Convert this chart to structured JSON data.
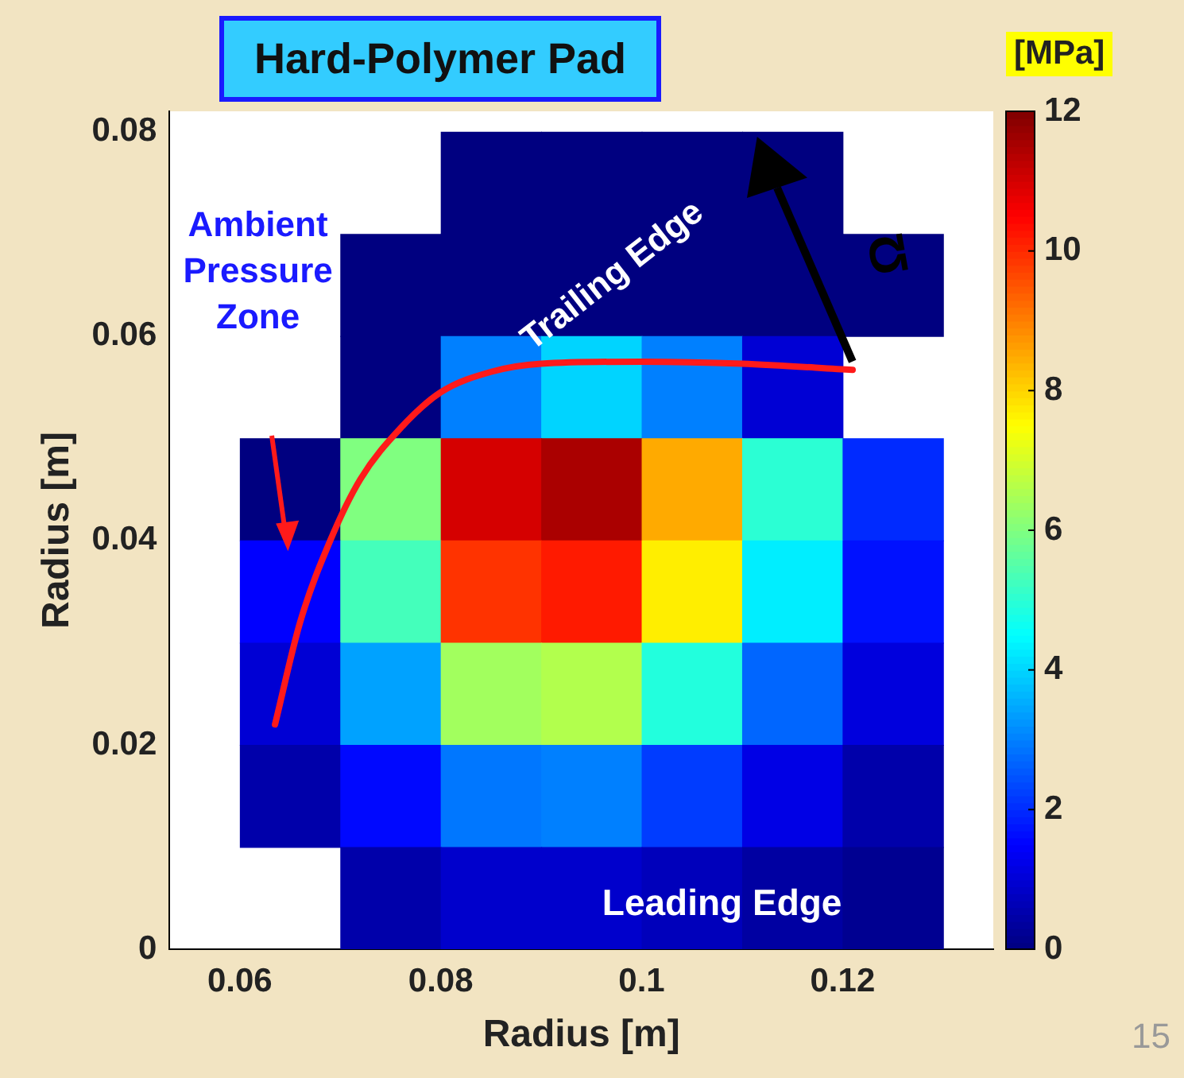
{
  "chart_data": {
    "type": "heatmap",
    "title": "Hard-Polymer Pad",
    "xlabel": "Radius [m]",
    "ylabel": "Radius [m]",
    "clabel": "[MPa]",
    "x": [
      0.065,
      0.075,
      0.085,
      0.095,
      0.105,
      0.115,
      0.125
    ],
    "y": [
      0.075,
      0.065,
      0.055,
      0.045,
      0.035,
      0.025,
      0.015,
      0.005
    ],
    "cells": [
      [
        null,
        null,
        0,
        0,
        0,
        0,
        null
      ],
      [
        null,
        0,
        0,
        0,
        0,
        0,
        0
      ],
      [
        null,
        0,
        3,
        4,
        3,
        1,
        null
      ],
      [
        0,
        6,
        11,
        11.5,
        8.5,
        5,
        2
      ],
      [
        1.5,
        5.3,
        9.9,
        10.2,
        7.7,
        4.3,
        1.7
      ],
      [
        1,
        3.4,
        6.4,
        6.6,
        4.9,
        2.7,
        1.1
      ],
      [
        0.5,
        1.6,
        2.9,
        3,
        2.2,
        1.2,
        0.5
      ],
      [
        null,
        0.5,
        0.9,
        0.9,
        0.7,
        0.4,
        0.2
      ]
    ],
    "xlim": [
      0.053,
      0.135
    ],
    "xticks": [
      0.06,
      0.08,
      {
        "value": 0.1,
        "label": "0.1"
      },
      0.12
    ],
    "ylim": [
      0,
      0.082
    ],
    "yticks": [
      {
        "value": 0,
        "label": "0"
      },
      0.02,
      0.04,
      0.06,
      0.08
    ],
    "clim": [
      0,
      12
    ],
    "cticks": [
      0,
      2,
      4,
      6,
      8,
      10,
      12
    ],
    "series": [
      {
        "type": "line",
        "color": "#ff1a1a",
        "x": [
          0.0635,
          0.066,
          0.069,
          0.072,
          0.076,
          0.08,
          0.085,
          0.09,
          0.1,
          0.11,
          0.121
        ],
        "values": [
          0.022,
          0.032,
          0.04,
          0.046,
          0.051,
          0.0545,
          0.0565,
          0.0573,
          0.0575,
          0.0573,
          0.0567
        ]
      }
    ],
    "annotations": [
      "Ambient Pressure Zone",
      "Trailing Edge",
      "Leading Edge",
      "Ω",
      "15"
    ]
  }
}
